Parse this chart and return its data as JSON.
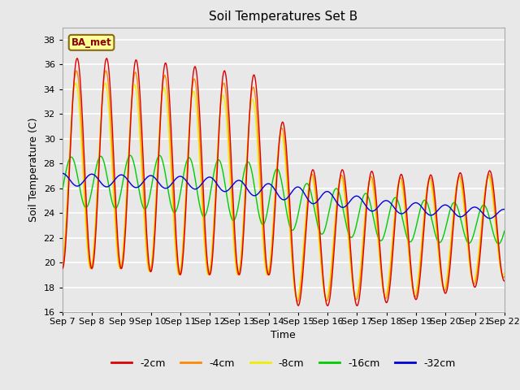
{
  "title": "Soil Temperatures Set B",
  "xlabel": "Time",
  "ylabel": "Soil Temperature (C)",
  "ylim": [
    16,
    39
  ],
  "yticks": [
    16,
    18,
    20,
    22,
    24,
    26,
    28,
    30,
    32,
    34,
    36,
    38
  ],
  "plot_bg_color": "#e8e8e8",
  "outer_bg_color": "#d4d4d4",
  "line_colors": {
    "-2cm": "#dd0000",
    "-4cm": "#ff8800",
    "-8cm": "#eeee00",
    "-16cm": "#00cc00",
    "-32cm": "#0000dd"
  },
  "legend_label": "BA_met",
  "num_points": 720
}
